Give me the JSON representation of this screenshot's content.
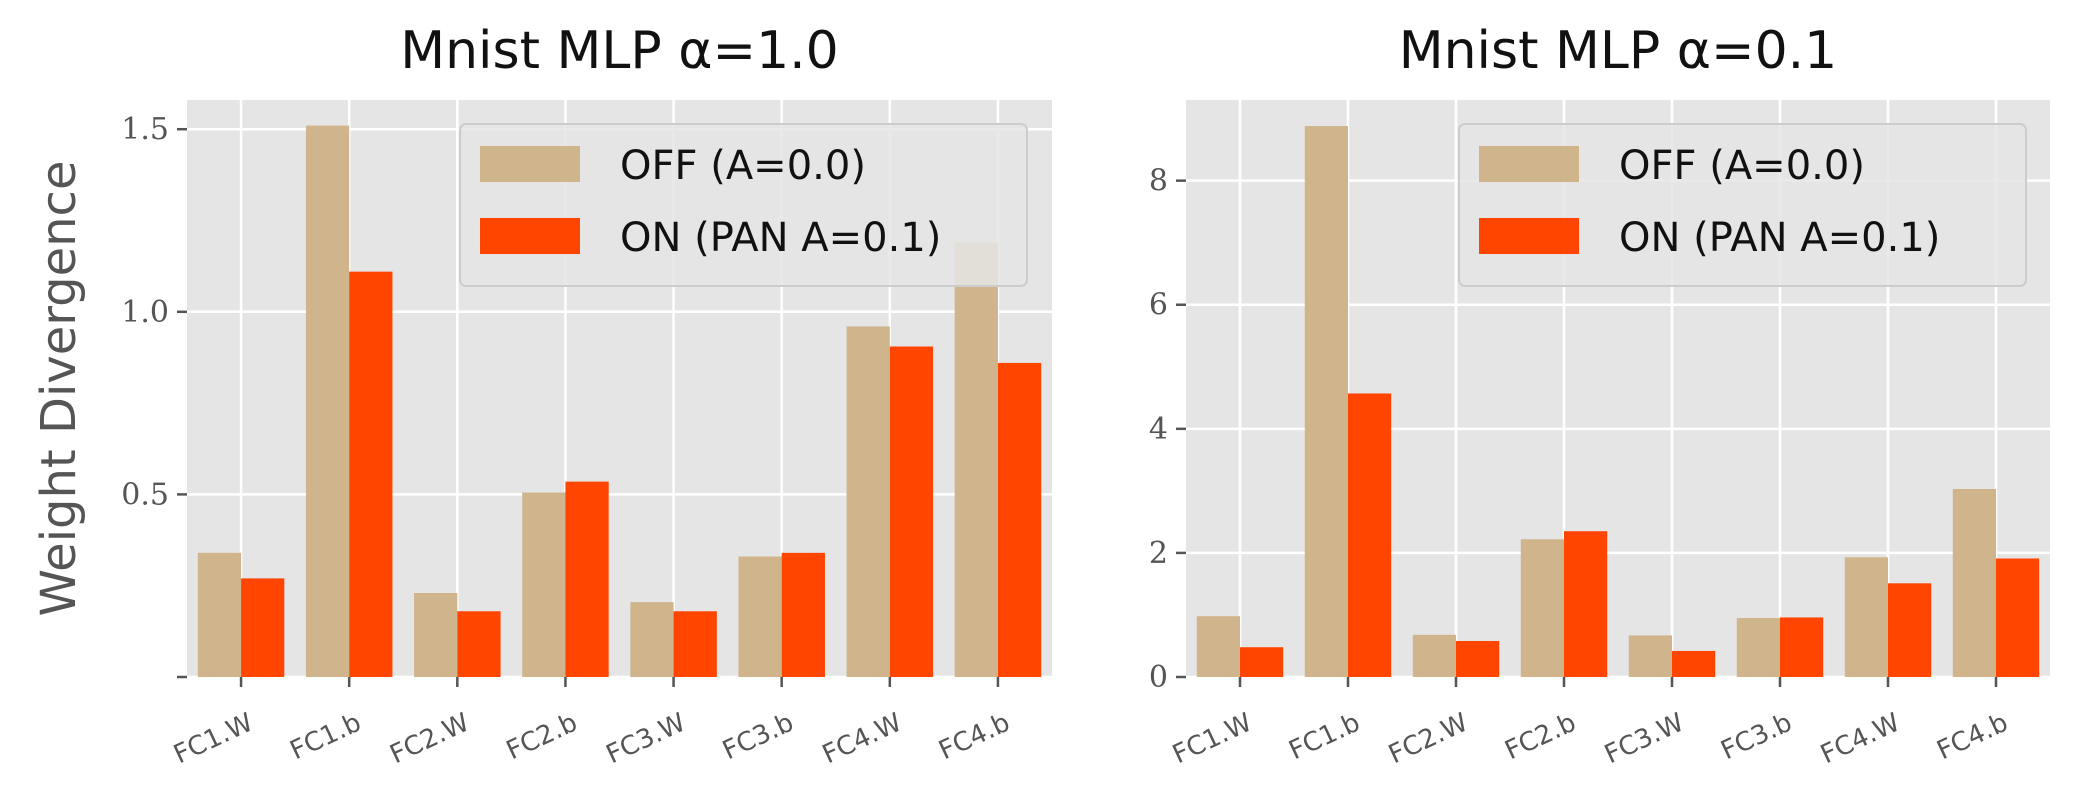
{
  "chart_data": [
    {
      "type": "bar",
      "title": "Mnist MLP α=1.0",
      "ylabel": "Weight Divergence",
      "categories": [
        "FC1.W",
        "FC1.b",
        "FC2.W",
        "FC2.b",
        "FC3.W",
        "FC3.b",
        "FC4.W",
        "FC4.b"
      ],
      "series": [
        {
          "name": "OFF (A=0.0)",
          "color": "#d0b48b",
          "values": [
            0.34,
            1.51,
            0.23,
            0.505,
            0.205,
            0.33,
            0.96,
            1.19
          ]
        },
        {
          "name": "ON (PAN  A=0.1)",
          "color": "#ff4500",
          "values": [
            0.27,
            1.11,
            0.18,
            0.535,
            0.18,
            0.34,
            0.905,
            0.86
          ]
        }
      ],
      "ylim": [
        0,
        1.58
      ],
      "yticks": [
        0,
        0.5,
        1.0,
        1.5
      ],
      "ytick_labels": [
        "",
        "0.5",
        "1.0",
        "1.5"
      ],
      "grid": true,
      "legend": "top-right"
    },
    {
      "type": "bar",
      "title": "Mnist MLP α=0.1",
      "ylabel": "",
      "categories": [
        "FC1.W",
        "FC1.b",
        "FC2.W",
        "FC2.b",
        "FC3.W",
        "FC3.b",
        "FC4.W",
        "FC4.b"
      ],
      "series": [
        {
          "name": "OFF (A=0.0)",
          "color": "#d0b48b",
          "values": [
            0.98,
            8.88,
            0.68,
            2.22,
            0.67,
            0.95,
            1.93,
            3.03
          ]
        },
        {
          "name": "ON (PAN  A=0.1)",
          "color": "#ff4500",
          "values": [
            0.48,
            4.57,
            0.58,
            2.35,
            0.42,
            0.96,
            1.51,
            1.91
          ]
        }
      ],
      "ylim": [
        0,
        9.3
      ],
      "yticks": [
        0,
        2,
        4,
        6,
        8
      ],
      "ytick_labels": [
        "0",
        "2",
        "4",
        "6",
        "8"
      ],
      "grid": true,
      "legend": "top-right"
    }
  ]
}
